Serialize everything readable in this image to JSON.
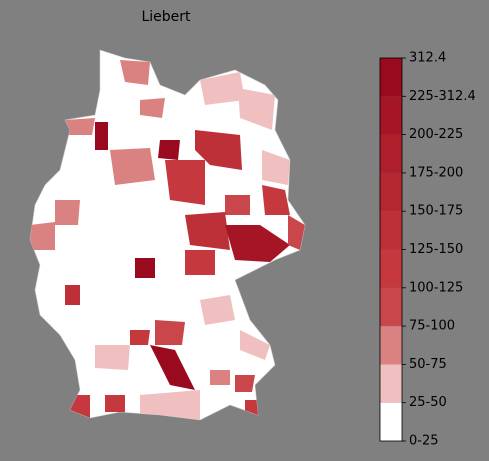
{
  "title": "Liebert",
  "legend": {
    "labels": [
      "0-25",
      "25-50",
      "50-75",
      "75-100",
      "100-125",
      "125-150",
      "150-175",
      "175-200",
      "200-225",
      "225-312.4",
      "312.4"
    ],
    "colors": [
      "#ffffff",
      "#f0c0c0",
      "#da8282",
      "#c9464b",
      "#c4383e",
      "#bd3038",
      "#b62831",
      "#ae1f2b",
      "#a51525",
      "#990a1f"
    ]
  }
}
